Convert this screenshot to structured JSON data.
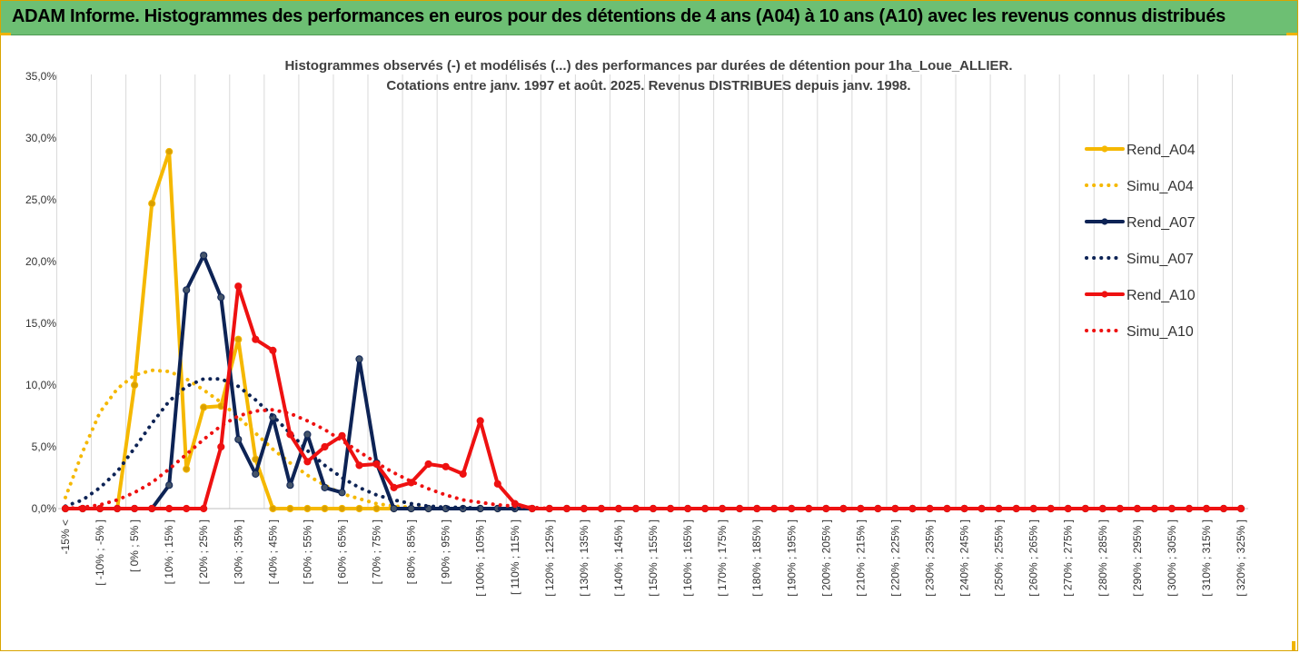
{
  "page": {
    "banner_title": "ADAM Informe. Histogrammes des performances en euros pour des détentions de 4 ans (A04) à 10 ans (A10) avec les revenus connus distribués"
  },
  "chart_data": {
    "type": "line",
    "title_lines": [
      "Histogrammes observés (-) et modélisés (...) des performances par durées de détention pour 1ha_Loue_ALLIER.",
      "Cotations entre janv. 1997 et août. 2025. Revenus DISTRIBUES depuis janv. 1998."
    ],
    "xlabel": "",
    "ylabel": "",
    "ylim": [
      0,
      35
    ],
    "y_ticks": [
      "0,0%",
      "5,0%",
      "10,0%",
      "15,0%",
      "20,0%",
      "25,0%",
      "30,0%",
      "35,0%"
    ],
    "x_labels": [
      "-15% <",
      "[ -10% ; -5% ]",
      "[ 0% ; 5% ]",
      "[ 10% ; 15% ]",
      "[ 20% ; 25% ]",
      "[ 30% ; 35% ]",
      "[ 40% ; 45% ]",
      "[ 50% ; 55% ]",
      "[ 60% ; 65% ]",
      "[ 70% ; 75% ]",
      "[ 80% ; 85% ]",
      "[ 90% ; 95% ]",
      "[ 100% ; 105% ]",
      "[ 110% ; 115% ]",
      "[ 120% ; 125% ]",
      "[ 130% ; 135% ]",
      "[ 140% ; 145% ]",
      "[ 150% ; 155% ]",
      "[ 160% ; 165% ]",
      "[ 170% ; 175% ]",
      "[ 180% ; 185% ]",
      "[ 190% ; 195% ]",
      "[ 200% ; 205% ]",
      "[ 210% ; 215% ]",
      "[ 220% ; 225% ]",
      "[ 230% ; 235% ]",
      "[ 240% ; 245% ]",
      "[ 250% ; 255% ]",
      "[ 260% ; 265% ]",
      "[ 270% ; 275% ]",
      "[ 280% ; 285% ]",
      "[ 290% ; 295% ]",
      "[ 300% ; 305% ]",
      "[ 310% ; 315% ]",
      "[ 320% ; 325% ]"
    ],
    "grid": "vertical",
    "legend_position": "right",
    "series": [
      {
        "name": "Rend_A04",
        "style": "solid",
        "markers": true,
        "color": "#f5b800",
        "values": [
          0,
          0,
          0,
          0,
          10,
          24.7,
          28.9,
          3.2,
          8.2,
          8.3,
          13.7,
          4,
          0,
          0,
          0,
          0,
          0,
          0,
          0,
          0,
          0,
          0,
          0,
          0,
          0,
          0,
          0,
          0,
          0,
          0,
          0,
          0,
          0,
          0,
          0,
          0,
          0,
          0,
          0,
          0,
          0,
          0,
          0,
          0,
          0,
          0,
          0,
          0,
          0,
          0,
          0,
          0,
          0,
          0,
          0,
          0,
          0,
          0,
          0,
          0,
          0,
          0,
          0,
          0,
          0,
          0,
          0,
          0,
          0
        ]
      },
      {
        "name": "Simu_A04",
        "style": "dotted",
        "markers": false,
        "color": "#f5b800",
        "values": [
          0.9,
          4.6,
          7.8,
          9.7,
          10.8,
          11.2,
          11.1,
          10.5,
          9.6,
          8.6,
          7.4,
          6.1,
          4.8,
          3.7,
          2.7,
          1.9,
          1.2,
          0.8,
          0.4,
          0.2,
          0.1,
          0,
          0,
          0,
          0,
          0,
          0,
          0,
          0,
          0,
          0,
          0,
          0,
          0,
          0,
          0,
          0,
          0,
          0,
          0,
          0,
          0,
          0,
          0,
          0,
          0,
          0,
          0,
          0,
          0,
          0,
          0,
          0,
          0,
          0,
          0,
          0,
          0,
          0,
          0,
          0,
          0,
          0,
          0,
          0,
          0,
          0,
          0,
          0
        ]
      },
      {
        "name": "Rend_A07",
        "style": "solid",
        "markers": true,
        "color": "#0d2355",
        "values": [
          0,
          0,
          0,
          0,
          0,
          0,
          1.9,
          17.7,
          20.5,
          17.1,
          5.6,
          2.8,
          7.4,
          1.9,
          6,
          1.7,
          1.3,
          12.1,
          3.7,
          0,
          0,
          0,
          0,
          0,
          0,
          0,
          0,
          0,
          0,
          0,
          0,
          0,
          0,
          0,
          0,
          0,
          0,
          0,
          0,
          0,
          0,
          0,
          0,
          0,
          0,
          0,
          0,
          0,
          0,
          0,
          0,
          0,
          0,
          0,
          0,
          0,
          0,
          0,
          0,
          0,
          0,
          0,
          0,
          0,
          0,
          0,
          0,
          0,
          0
        ]
      },
      {
        "name": "Simu_A07",
        "style": "dotted",
        "markers": false,
        "color": "#0d2355",
        "values": [
          0.2,
          0.7,
          1.7,
          3,
          4.9,
          6.9,
          8.7,
          9.9,
          10.5,
          10.5,
          9.9,
          8.8,
          7.5,
          6.1,
          4.7,
          3.5,
          2.5,
          1.7,
          1.1,
          0.7,
          0.4,
          0.2,
          0.1,
          0.1,
          0,
          0,
          0,
          0,
          0,
          0,
          0,
          0,
          0,
          0,
          0,
          0,
          0,
          0,
          0,
          0,
          0,
          0,
          0,
          0,
          0,
          0,
          0,
          0,
          0,
          0,
          0,
          0,
          0,
          0,
          0,
          0,
          0,
          0,
          0,
          0,
          0,
          0,
          0,
          0,
          0,
          0,
          0,
          0,
          0
        ]
      },
      {
        "name": "Rend_A10",
        "style": "solid",
        "markers": true,
        "color": "#ee1111",
        "values": [
          0,
          0,
          0,
          0,
          0,
          0,
          0,
          0,
          0,
          5,
          18,
          13.7,
          12.8,
          6,
          3.8,
          5,
          5.9,
          3.5,
          3.6,
          1.7,
          2.1,
          3.6,
          3.4,
          2.8,
          7.1,
          2,
          0.4,
          0,
          0,
          0,
          0,
          0,
          0,
          0,
          0,
          0,
          0,
          0,
          0,
          0,
          0,
          0,
          0,
          0,
          0,
          0,
          0,
          0,
          0,
          0,
          0,
          0,
          0,
          0,
          0,
          0,
          0,
          0,
          0,
          0,
          0,
          0,
          0,
          0,
          0,
          0,
          0,
          0,
          0
        ]
      },
      {
        "name": "Simu_A10",
        "style": "dotted",
        "markers": false,
        "color": "#ee1111",
        "values": [
          0,
          0.1,
          0.3,
          0.7,
          1.3,
          2.1,
          3.2,
          4.4,
          5.6,
          6.7,
          7.5,
          7.9,
          8,
          7.7,
          7.1,
          6.4,
          5.5,
          4.6,
          3.7,
          2.9,
          2.2,
          1.6,
          1.1,
          0.7,
          0.5,
          0.3,
          0.2,
          0.1,
          0,
          0,
          0,
          0,
          0,
          0,
          0,
          0,
          0,
          0,
          0,
          0,
          0,
          0,
          0,
          0,
          0,
          0,
          0,
          0,
          0,
          0,
          0,
          0,
          0,
          0,
          0,
          0,
          0,
          0,
          0,
          0,
          0,
          0,
          0,
          0,
          0,
          0,
          0,
          0,
          0
        ]
      }
    ]
  }
}
